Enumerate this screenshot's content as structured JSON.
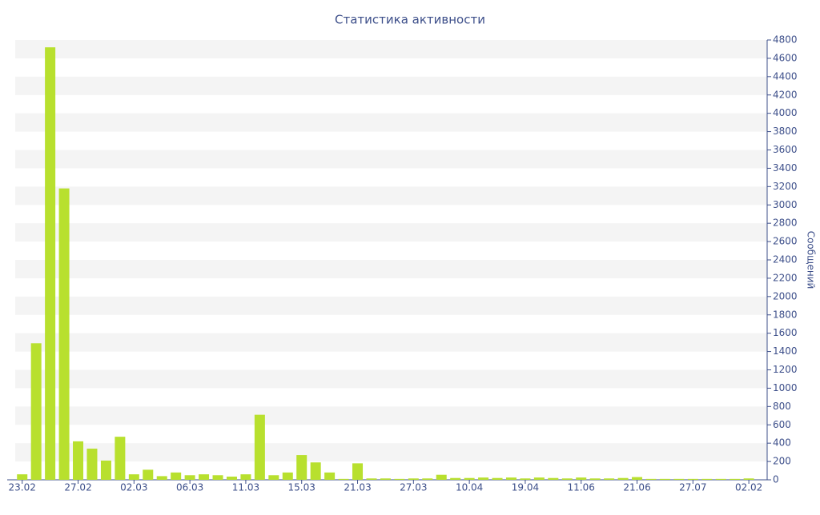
{
  "chart_data": {
    "type": "bar",
    "title": "Статистика активности",
    "y_label": "Сообщений",
    "categories": [
      "23.02",
      null,
      null,
      null,
      "27.02",
      null,
      null,
      null,
      "02.03",
      null,
      null,
      null,
      "06.03",
      null,
      null,
      null,
      "11.03",
      null,
      null,
      null,
      "15.03",
      null,
      null,
      null,
      "21.03",
      null,
      null,
      null,
      "27.03",
      null,
      null,
      null,
      "10.04",
      null,
      null,
      null,
      "19.04",
      null,
      null,
      null,
      "11.06",
      null,
      null,
      null,
      "21.06",
      null,
      null,
      null,
      "27.07",
      null,
      null,
      null,
      "02.02"
    ],
    "values": [
      60,
      1490,
      4720,
      3180,
      420,
      340,
      210,
      470,
      60,
      110,
      40,
      80,
      50,
      60,
      50,
      35,
      60,
      710,
      50,
      80,
      270,
      190,
      80,
      10,
      180,
      15,
      15,
      10,
      15,
      15,
      55,
      20,
      20,
      25,
      20,
      25,
      15,
      25,
      20,
      15,
      25,
      15,
      15,
      20,
      30,
      10,
      10,
      10,
      10,
      10,
      10,
      10,
      15
    ],
    "color": "#b8e02e",
    "ylim": [
      0,
      4800
    ],
    "yticks": [
      0,
      200,
      400,
      600,
      800,
      1000,
      1200,
      1400,
      1600,
      1800,
      2000,
      2200,
      2400,
      2600,
      2800,
      3000,
      3200,
      3400,
      3600,
      3800,
      4000,
      4200,
      4400,
      4600,
      4800
    ],
    "grid": "bands",
    "band_color": "#f4f4f4",
    "text_color": "#3d4f8a"
  }
}
